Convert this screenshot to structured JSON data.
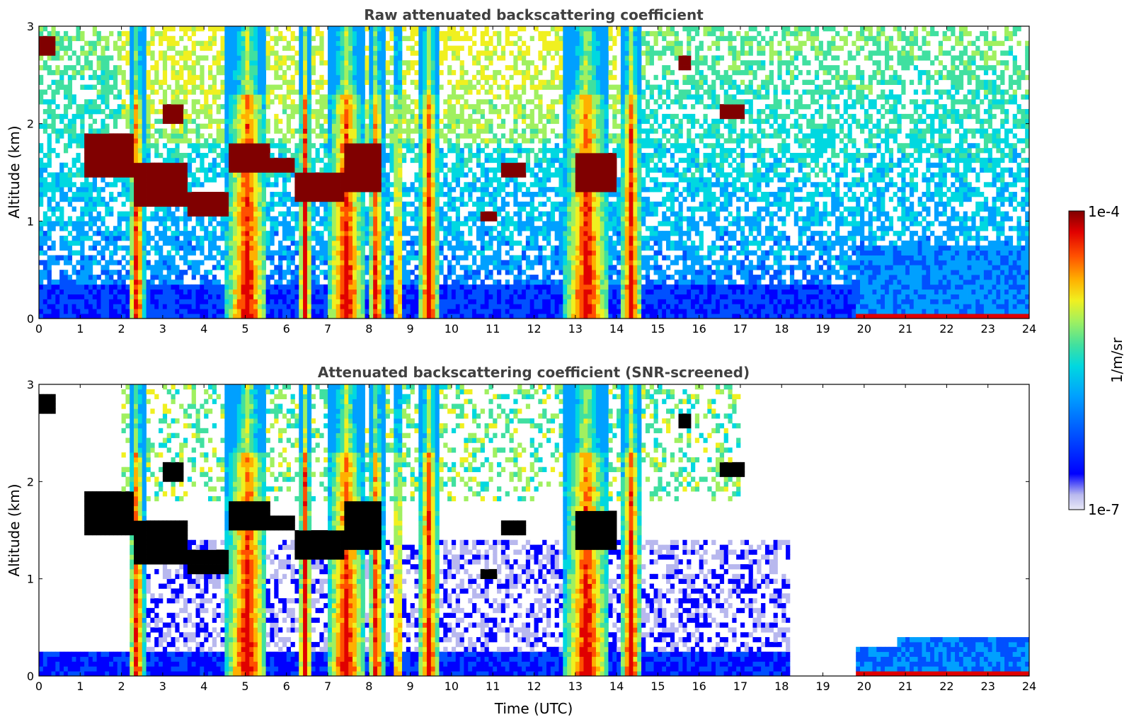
{
  "chart_data": [
    {
      "type": "heatmap",
      "title": "Raw attenuated backscattering coefficient",
      "xlabel": "",
      "ylabel": "Altitude (km)",
      "xlim": [
        0,
        24
      ],
      "ylim": [
        0,
        3
      ],
      "xticks": [
        "0",
        "1",
        "2",
        "3",
        "4",
        "5",
        "6",
        "7",
        "8",
        "9",
        "10",
        "11",
        "12",
        "13",
        "14",
        "15",
        "16",
        "17",
        "18",
        "19",
        "20",
        "21",
        "22",
        "23",
        "24"
      ],
      "yticks": [
        "0",
        "1",
        "2",
        "3"
      ],
      "screened": false
    },
    {
      "type": "heatmap",
      "title": "Attenuated backscattering coefficient (SNR-screened)",
      "xlabel": "Time (UTC)",
      "ylabel": "Altitude (km)",
      "xlim": [
        0,
        24
      ],
      "ylim": [
        0,
        3
      ],
      "xticks": [
        "0",
        "1",
        "2",
        "3",
        "4",
        "5",
        "6",
        "7",
        "8",
        "9",
        "10",
        "11",
        "12",
        "13",
        "14",
        "15",
        "16",
        "17",
        "18",
        "19",
        "20",
        "21",
        "22",
        "23",
        "24"
      ],
      "yticks": [
        "0",
        "1",
        "2",
        "3"
      ],
      "screened": true
    }
  ],
  "colorbar": {
    "label": "1/m/sr",
    "min_label": "1e-7",
    "max_label": "1e-4",
    "colors": [
      "#e8e8f6",
      "#b8b8ee",
      "#0000ff",
      "#0050ff",
      "#00a0ff",
      "#00d8e0",
      "#40e0a0",
      "#a0f060",
      "#f0f020",
      "#ffb000",
      "#ff5000",
      "#e00000",
      "#800000"
    ]
  }
}
